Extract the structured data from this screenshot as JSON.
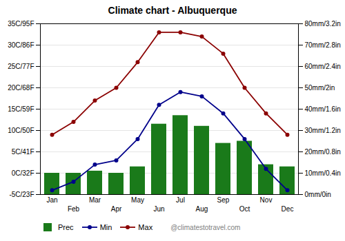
{
  "chart_data": {
    "type": "combo",
    "title": "Climate chart - Albuquerque",
    "categories": [
      "Jan",
      "Feb",
      "Mar",
      "Apr",
      "May",
      "Jun",
      "Jul",
      "Aug",
      "Sep",
      "Oct",
      "Nov",
      "Dec"
    ],
    "series": [
      {
        "name": "Prec",
        "type": "bar",
        "axis": "y2",
        "color": "#1a7a1a",
        "values": [
          10,
          10,
          11,
          10,
          13,
          33,
          37,
          32,
          24,
          25,
          14,
          13
        ]
      },
      {
        "name": "Min",
        "type": "line",
        "marker": "circle",
        "color": "#00008b",
        "values": [
          -4,
          -2,
          2,
          3,
          8,
          16,
          19,
          18,
          14,
          8,
          1,
          -4
        ]
      },
      {
        "name": "Max",
        "type": "line",
        "marker": "circle",
        "color": "#8b0000",
        "values": [
          9,
          12,
          17,
          20,
          26,
          33,
          33,
          32,
          28,
          20,
          14,
          9
        ]
      }
    ],
    "ylim": [
      -5,
      35
    ],
    "yticks": [
      {
        "value": -5,
        "label": "-5C/23F"
      },
      {
        "value": 0,
        "label": "0C/32F"
      },
      {
        "value": 5,
        "label": "5C/41F"
      },
      {
        "value": 10,
        "label": "10C/50F"
      },
      {
        "value": 15,
        "label": "15C/59F"
      },
      {
        "value": 20,
        "label": "20C/68F"
      },
      {
        "value": 25,
        "label": "25C/77F"
      },
      {
        "value": 30,
        "label": "30C/86F"
      },
      {
        "value": 35,
        "label": "35C/95F"
      }
    ],
    "y2lim": [
      0,
      80
    ],
    "y2ticks": [
      {
        "value": 0,
        "label": "0mm/0in"
      },
      {
        "value": 10,
        "label": "10mm/0.4in"
      },
      {
        "value": 20,
        "label": "20mm/0.8in"
      },
      {
        "value": 30,
        "label": "30mm/1.2in"
      },
      {
        "value": 40,
        "label": "40mm/1.6in"
      },
      {
        "value": 50,
        "label": "50mm/2in"
      },
      {
        "value": 60,
        "label": "60mm/2.4in"
      },
      {
        "value": 70,
        "label": "70mm/2.8in"
      },
      {
        "value": 80,
        "label": "80mm/3.2in"
      }
    ],
    "grid": true,
    "legend": "bottom",
    "annotations": [
      {
        "text": "@climatestotravel.com"
      }
    ]
  }
}
